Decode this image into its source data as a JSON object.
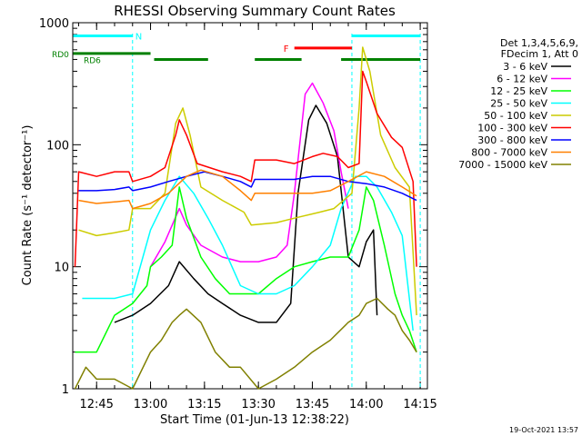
{
  "chart_data": {
    "type": "line",
    "title": "RHESSI Observing Summary Count Rates",
    "xlabel": "Start Time (01-Jun-13 12:38:22)",
    "ylabel": "Count Rate (s⁻¹ detector⁻¹)",
    "y_scale": "log",
    "ylim": [
      1,
      1000
    ],
    "xlim": [
      "12:38:22",
      "14:17:00"
    ],
    "x_ticks": [
      "12:45",
      "13:00",
      "13:15",
      "13:30",
      "13:45",
      "14:00",
      "14:15"
    ],
    "y_ticks": [
      "1",
      "10",
      "100",
      "1000"
    ],
    "footer": "19-Oct-2021 13:57",
    "legend_header": [
      "Det 1,3,4,5,6,9,",
      "FDecim 1, Att 0"
    ],
    "series": [
      {
        "name": "3 - 6 keV",
        "color": "#000000",
        "points": [
          [
            "12:50",
            3.5
          ],
          [
            "12:55",
            4
          ],
          [
            "13:00",
            5
          ],
          [
            "13:05",
            7
          ],
          [
            "13:08",
            11
          ],
          [
            "13:12",
            8
          ],
          [
            "13:16",
            6
          ],
          [
            "13:20",
            5
          ],
          [
            "13:25",
            4
          ],
          [
            "13:30",
            3.5
          ],
          [
            "13:35",
            3.5
          ],
          [
            "13:39",
            5
          ],
          [
            "13:41",
            40
          ],
          [
            "13:44",
            160
          ],
          [
            "13:46",
            210
          ],
          [
            "13:49",
            150
          ],
          [
            "13:52",
            80
          ],
          [
            "13:55",
            12
          ],
          [
            "13:58",
            10
          ],
          [
            "14:00",
            16
          ],
          [
            "14:02",
            20
          ],
          [
            "14:03",
            4
          ]
        ]
      },
      {
        "name": "6 - 12 keV",
        "color": "#ff00ff",
        "points": [
          [
            "13:00",
            10
          ],
          [
            "13:04",
            16
          ],
          [
            "13:08",
            30
          ],
          [
            "13:10",
            22
          ],
          [
            "13:14",
            15
          ],
          [
            "13:20",
            12
          ],
          [
            "13:25",
            11
          ],
          [
            "13:30",
            11
          ],
          [
            "13:35",
            12
          ],
          [
            "13:38",
            15
          ],
          [
            "13:40",
            40
          ],
          [
            "13:43",
            260
          ],
          [
            "13:45",
            320
          ],
          [
            "13:48",
            220
          ],
          [
            "13:51",
            130
          ],
          [
            "13:53",
            60
          ],
          [
            "13:55",
            30
          ]
        ]
      },
      {
        "name": "12 - 25 keV",
        "color": "#00ff00",
        "points": [
          [
            "12:39",
            2
          ],
          [
            "12:45",
            2
          ],
          [
            "12:50",
            4
          ],
          [
            "12:55",
            5
          ],
          [
            "12:59",
            7
          ],
          [
            "13:00",
            10
          ],
          [
            "13:03",
            12
          ],
          [
            "13:06",
            15
          ],
          [
            "13:08",
            45
          ],
          [
            "13:10",
            25
          ],
          [
            "13:14",
            12
          ],
          [
            "13:18",
            8
          ],
          [
            "13:22",
            6
          ],
          [
            "13:27",
            6
          ],
          [
            "13:30",
            6
          ],
          [
            "13:35",
            8
          ],
          [
            "13:40",
            10
          ],
          [
            "13:45",
            11
          ],
          [
            "13:50",
            12
          ],
          [
            "13:55",
            12
          ],
          [
            "13:58",
            20
          ],
          [
            "14:00",
            45
          ],
          [
            "14:02",
            35
          ],
          [
            "14:05",
            15
          ],
          [
            "14:08",
            6
          ],
          [
            "14:10",
            4
          ],
          [
            "14:12",
            3
          ],
          [
            "14:14",
            2
          ]
        ]
      },
      {
        "name": "25 - 50 keV",
        "color": "#00ffff",
        "points": [
          [
            "12:41",
            5.5
          ],
          [
            "12:45",
            5.5
          ],
          [
            "12:50",
            5.5
          ],
          [
            "12:55",
            6
          ],
          [
            "13:00",
            20
          ],
          [
            "13:04",
            35
          ],
          [
            "13:08",
            55
          ],
          [
            "13:12",
            40
          ],
          [
            "13:16",
            25
          ],
          [
            "13:20",
            15
          ],
          [
            "13:25",
            7
          ],
          [
            "13:30",
            6
          ],
          [
            "13:35",
            6
          ],
          [
            "13:40",
            7
          ],
          [
            "13:45",
            10
          ],
          [
            "13:50",
            15
          ],
          [
            "13:53",
            30
          ],
          [
            "13:57",
            55
          ],
          [
            "14:00",
            55
          ],
          [
            "14:03",
            45
          ],
          [
            "14:07",
            28
          ],
          [
            "14:10",
            18
          ],
          [
            "14:13",
            3
          ]
        ]
      },
      {
        "name": "50 - 100 keV",
        "color": "#cccc00",
        "points": [
          [
            "12:40",
            20
          ],
          [
            "12:45",
            18
          ],
          [
            "12:50",
            19
          ],
          [
            "12:54",
            20
          ],
          [
            "12:55",
            30
          ],
          [
            "13:00",
            30
          ],
          [
            "13:04",
            40
          ],
          [
            "13:07",
            150
          ],
          [
            "13:09",
            200
          ],
          [
            "13:11",
            120
          ],
          [
            "13:14",
            45
          ],
          [
            "13:20",
            35
          ],
          [
            "13:26",
            28
          ],
          [
            "13:28",
            22
          ],
          [
            "13:35",
            23
          ],
          [
            "13:40",
            25
          ],
          [
            "13:47",
            28
          ],
          [
            "13:51",
            30
          ],
          [
            "13:56",
            40
          ],
          [
            "13:58",
            200
          ],
          [
            "13:59",
            630
          ],
          [
            "14:01",
            400
          ],
          [
            "14:04",
            120
          ],
          [
            "14:08",
            65
          ],
          [
            "14:12",
            45
          ],
          [
            "14:14",
            4
          ]
        ]
      },
      {
        "name": "100 - 300 keV",
        "color": "#ff0000",
        "points": [
          [
            "12:39",
            10
          ],
          [
            "12:40",
            60
          ],
          [
            "12:45",
            55
          ],
          [
            "12:50",
            60
          ],
          [
            "12:54",
            60
          ],
          [
            "12:55",
            50
          ],
          [
            "13:00",
            55
          ],
          [
            "13:04",
            65
          ],
          [
            "13:07",
            120
          ],
          [
            "13:08",
            160
          ],
          [
            "13:10",
            120
          ],
          [
            "13:13",
            70
          ],
          [
            "13:20",
            60
          ],
          [
            "13:25",
            55
          ],
          [
            "13:28",
            50
          ],
          [
            "13:29",
            75
          ],
          [
            "13:35",
            75
          ],
          [
            "13:40",
            70
          ],
          [
            "13:45",
            80
          ],
          [
            "13:48",
            85
          ],
          [
            "13:52",
            80
          ],
          [
            "13:55",
            65
          ],
          [
            "13:58",
            70
          ],
          [
            "13:59",
            400
          ],
          [
            "14:00",
            330
          ],
          [
            "14:03",
            180
          ],
          [
            "14:07",
            115
          ],
          [
            "14:10",
            95
          ],
          [
            "14:13",
            50
          ],
          [
            "14:14",
            10
          ]
        ]
      },
      {
        "name": "300 - 800 keV",
        "color": "#0000ff",
        "points": [
          [
            "12:40",
            42
          ],
          [
            "12:45",
            42
          ],
          [
            "12:50",
            43
          ],
          [
            "12:54",
            45
          ],
          [
            "12:55",
            42
          ],
          [
            "13:00",
            45
          ],
          [
            "13:05",
            50
          ],
          [
            "13:10",
            55
          ],
          [
            "13:15",
            60
          ],
          [
            "13:20",
            55
          ],
          [
            "13:25",
            50
          ],
          [
            "13:28",
            45
          ],
          [
            "13:29",
            52
          ],
          [
            "13:35",
            52
          ],
          [
            "13:40",
            52
          ],
          [
            "13:45",
            55
          ],
          [
            "13:50",
            55
          ],
          [
            "13:55",
            50
          ],
          [
            "14:00",
            48
          ],
          [
            "14:05",
            45
          ],
          [
            "14:10",
            40
          ],
          [
            "14:14",
            35
          ]
        ]
      },
      {
        "name": "800 - 7000 keV",
        "color": "#ff8000",
        "points": [
          [
            "12:40",
            35
          ],
          [
            "12:45",
            33
          ],
          [
            "12:50",
            34
          ],
          [
            "12:54",
            35
          ],
          [
            "12:55",
            30
          ],
          [
            "13:00",
            33
          ],
          [
            "13:05",
            40
          ],
          [
            "13:10",
            55
          ],
          [
            "13:14",
            62
          ],
          [
            "13:20",
            55
          ],
          [
            "13:25",
            42
          ],
          [
            "13:28",
            35
          ],
          [
            "13:29",
            40
          ],
          [
            "13:35",
            40
          ],
          [
            "13:40",
            40
          ],
          [
            "13:45",
            40
          ],
          [
            "13:50",
            42
          ],
          [
            "13:55",
            50
          ],
          [
            "14:00",
            60
          ],
          [
            "14:05",
            55
          ],
          [
            "14:10",
            45
          ],
          [
            "14:14",
            38
          ]
        ]
      },
      {
        "name": "7000 - 15000 keV",
        "color": "#808000",
        "points": [
          [
            "12:39",
            1
          ],
          [
            "12:42",
            1.5
          ],
          [
            "12:45",
            1.2
          ],
          [
            "12:50",
            1.2
          ],
          [
            "12:55",
            1
          ],
          [
            "13:00",
            2
          ],
          [
            "13:03",
            2.5
          ],
          [
            "13:06",
            3.5
          ],
          [
            "13:08",
            4
          ],
          [
            "13:10",
            4.5
          ],
          [
            "13:14",
            3.5
          ],
          [
            "13:18",
            2
          ],
          [
            "13:22",
            1.5
          ],
          [
            "13:25",
            1.5
          ],
          [
            "13:30",
            1
          ],
          [
            "13:35",
            1.2
          ],
          [
            "13:40",
            1.5
          ],
          [
            "13:45",
            2
          ],
          [
            "13:50",
            2.5
          ],
          [
            "13:55",
            3.5
          ],
          [
            "13:58",
            4
          ],
          [
            "14:00",
            5
          ],
          [
            "14:03",
            5.5
          ],
          [
            "14:06",
            4.5
          ],
          [
            "14:08",
            4
          ],
          [
            "14:10",
            3
          ],
          [
            "14:12",
            2.5
          ],
          [
            "14:14",
            2
          ]
        ]
      }
    ],
    "annotations": {
      "night": {
        "label": "N",
        "color": "#00ffff",
        "level": 780,
        "intervals": [
          [
            "12:38:30",
            "12:55"
          ],
          [
            "13:56",
            "14:15"
          ]
        ]
      },
      "flare": {
        "label": "F",
        "color": "#ff0000",
        "level": 620,
        "intervals": [
          [
            "13:40",
            "13:56"
          ]
        ]
      },
      "rd0": {
        "label": "RD0",
        "color": "#008000",
        "level": 560,
        "intervals": [
          [
            "12:38:30",
            "13:00"
          ]
        ]
      },
      "rd6": {
        "label": "RD6",
        "color": "#008000",
        "level": 500,
        "intervals": [
          [
            "13:01",
            "13:16"
          ],
          [
            "13:29",
            "13:42"
          ],
          [
            "13:53",
            "14:15"
          ]
        ]
      },
      "dashed_times": [
        "12:55",
        "13:56",
        "14:15"
      ]
    }
  }
}
